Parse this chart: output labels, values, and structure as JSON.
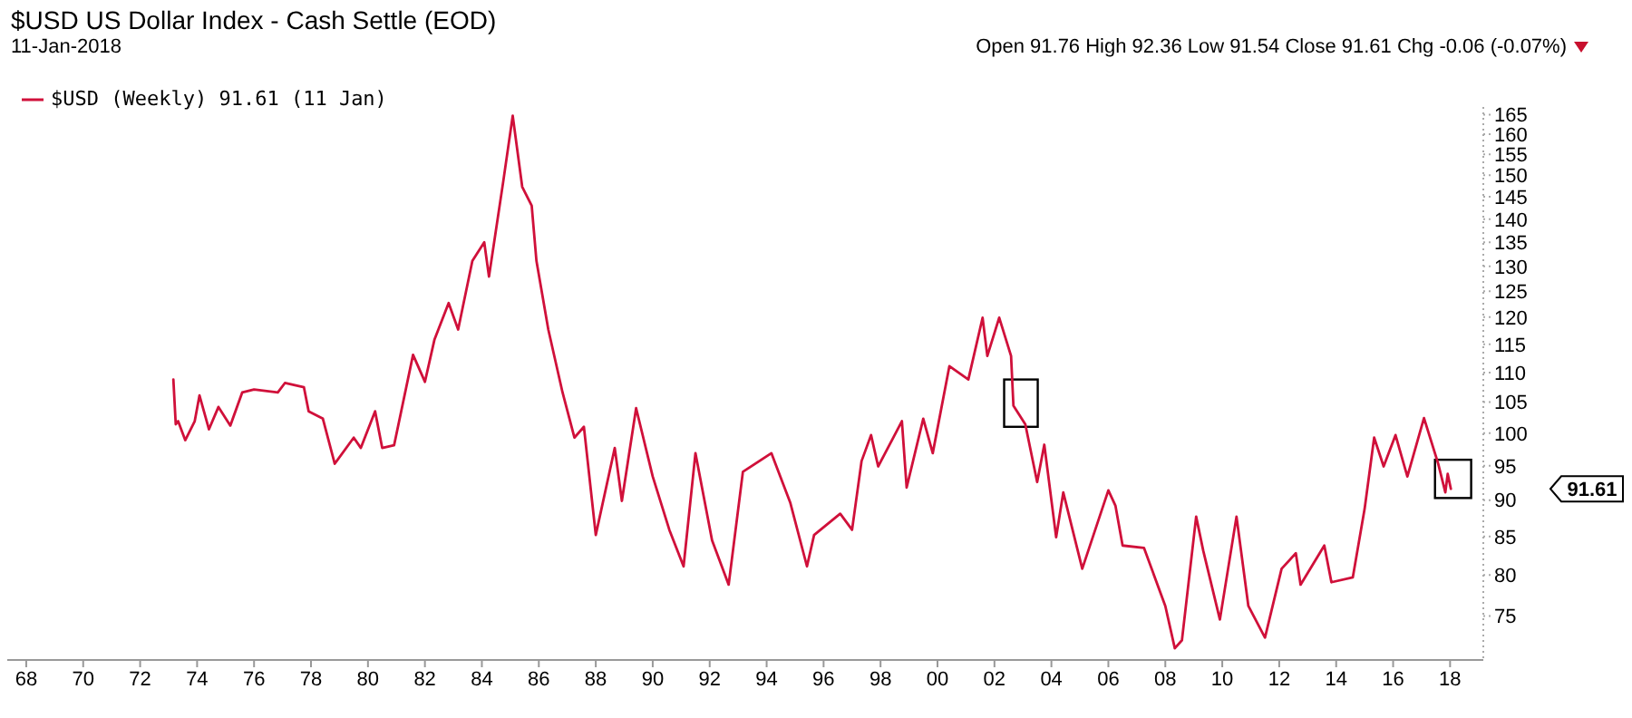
{
  "chart_data": {
    "type": "line",
    "title": "$USD US Dollar Index - Cash Settle (EOD)",
    "subtitle": "11-Jan-2018",
    "annotations": [
      "Open 91.76 High 92.36 Low 91.54 Close 91.61 Chg -0.06 (-0.07%)",
      "91.61"
    ],
    "x": [
      "1973-03",
      "1973-04",
      "1973-05",
      "1973-08",
      "1973-12",
      "1974-02",
      "1974-06",
      "1974-10",
      "1975-03",
      "1975-08",
      "1976-01",
      "1976-11",
      "1977-02",
      "1977-10",
      "1977-12",
      "1978-06",
      "1978-11",
      "1979-07",
      "1979-10",
      "1980-04",
      "1980-07",
      "1980-12",
      "1981-08",
      "1982-01",
      "1982-05",
      "1982-11",
      "1983-03",
      "1983-09",
      "1984-02",
      "1984-04",
      "1984-10",
      "1985-02",
      "1985-06",
      "1985-10",
      "1985-12",
      "1986-05",
      "1986-11",
      "1987-04",
      "1987-08",
      "1988-01",
      "1988-09",
      "1988-12",
      "1989-06",
      "1990-01",
      "1990-08",
      "1991-02",
      "1991-07",
      "1992-02",
      "1992-09",
      "1993-03",
      "1994-03",
      "1994-11",
      "1995-06",
      "1995-09",
      "1996-08",
      "1997-01",
      "1997-05",
      "1997-09",
      "1997-12",
      "1998-10",
      "1998-12",
      "1999-07",
      "1999-11",
      "2000-06",
      "2001-02",
      "2001-08",
      "2001-10",
      "2002-03",
      "2002-08",
      "2002-09",
      "2003-02",
      "2003-07",
      "2003-10",
      "2004-03",
      "2004-06",
      "2005-02",
      "2006-01",
      "2006-04",
      "2006-07",
      "2007-04",
      "2008-01",
      "2008-05",
      "2008-08",
      "2009-02",
      "2009-05",
      "2009-12",
      "2010-07",
      "2010-12",
      "2011-07",
      "2012-02",
      "2012-08",
      "2012-10",
      "2013-08",
      "2013-11",
      "2014-08",
      "2015-01",
      "2015-05",
      "2015-09",
      "2016-02",
      "2016-07",
      "2017-02",
      "2017-08",
      "2017-11",
      "2017-12",
      "2018-01-11"
    ],
    "series": [
      {
        "name": "$USD (Weekly) 91.61 (11 Jan)",
        "color": "#d0103a",
        "values": [
          108.8,
          101.4,
          101.9,
          98.9,
          101.9,
          106.1,
          100.6,
          104.2,
          101.2,
          106.6,
          107.1,
          106.6,
          108.2,
          107.5,
          103.5,
          102.3,
          95.3,
          99.3,
          97.7,
          103.5,
          97.7,
          98.1,
          113.1,
          108.4,
          115.8,
          122.7,
          117.7,
          131.1,
          135.0,
          127.9,
          148.5,
          164.7,
          147.3,
          143.0,
          131.1,
          117.7,
          106.6,
          99.3,
          101.0,
          85.2,
          97.7,
          89.9,
          104.0,
          93.4,
          85.9,
          81.1,
          96.9,
          84.5,
          78.8,
          94.1,
          96.9,
          89.6,
          81.1,
          85.2,
          88.1,
          85.9,
          95.7,
          99.7,
          94.9,
          101.9,
          91.8,
          102.3,
          96.9,
          111.1,
          108.8,
          119.9,
          112.9,
          119.9,
          112.9,
          104.4,
          101.4,
          92.6,
          98.2,
          84.9,
          91.1,
          80.8,
          91.4,
          89.2,
          83.8,
          83.5,
          76.2,
          71.3,
          72.2,
          87.7,
          83.1,
          74.6,
          87.7,
          76.2,
          72.5,
          80.8,
          82.8,
          78.8,
          83.8,
          79.1,
          79.7,
          88.8,
          99.3,
          94.9,
          99.7,
          93.4,
          102.4,
          95.3,
          91.1,
          93.8,
          91.61
        ]
      }
    ],
    "xlim": [
      "1967-05",
      "2019-03"
    ],
    "xticks": [
      {
        "value": "1968",
        "label": "68"
      },
      {
        "value": "1970",
        "label": "70"
      },
      {
        "value": "1972",
        "label": "72"
      },
      {
        "value": "1974",
        "label": "74"
      },
      {
        "value": "1976",
        "label": "76"
      },
      {
        "value": "1978",
        "label": "78"
      },
      {
        "value": "1980",
        "label": "80"
      },
      {
        "value": "1982",
        "label": "82"
      },
      {
        "value": "1984",
        "label": "84"
      },
      {
        "value": "1986",
        "label": "86"
      },
      {
        "value": "1988",
        "label": "88"
      },
      {
        "value": "1990",
        "label": "90"
      },
      {
        "value": "1992",
        "label": "92"
      },
      {
        "value": "1994",
        "label": "94"
      },
      {
        "value": "1996",
        "label": "96"
      },
      {
        "value": "1998",
        "label": "98"
      },
      {
        "value": "2000",
        "label": "00"
      },
      {
        "value": "2002",
        "label": "02"
      },
      {
        "value": "2004",
        "label": "04"
      },
      {
        "value": "2006",
        "label": "06"
      },
      {
        "value": "2008",
        "label": "08"
      },
      {
        "value": "2010",
        "label": "10"
      },
      {
        "value": "2012",
        "label": "12"
      },
      {
        "value": "2014",
        "label": "14"
      },
      {
        "value": "2016",
        "label": "16"
      },
      {
        "value": "2018",
        "label": "18"
      }
    ],
    "ylim": [
      70,
      167
    ],
    "yticks": [
      75,
      80,
      85,
      90,
      95,
      100,
      105,
      110,
      115,
      120,
      125,
      130,
      135,
      140,
      145,
      150,
      155,
      160,
      165
    ],
    "log": "y",
    "legend": "top left",
    "marker": "none",
    "line_style": "solid"
  }
}
